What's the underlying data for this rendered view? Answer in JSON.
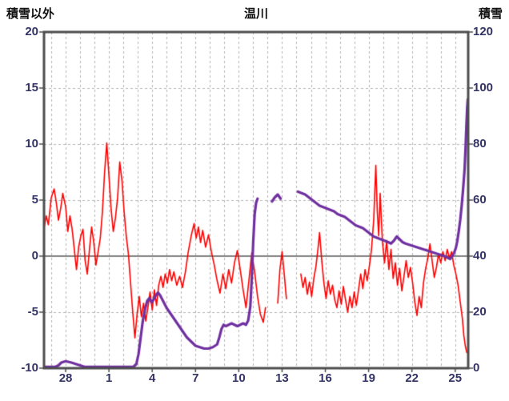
{
  "chart_data": {
    "type": "line",
    "title": "温川",
    "x_axis": {
      "min": 0,
      "max": 29.4,
      "tick_positions": [
        1.5,
        4.5,
        7.5,
        10.5,
        13.5,
        16.5,
        19.5,
        22.5,
        25.5,
        28.5
      ],
      "tick_labels": [
        "28",
        "1",
        "4",
        "7",
        "10",
        "13",
        "16",
        "19",
        "22",
        "25"
      ],
      "day_grid": {
        "start": 0.5,
        "step": 1
      }
    },
    "left_axis": {
      "label": "積雪以外",
      "min": -10,
      "max": 20,
      "ticks": [
        20,
        15,
        10,
        5,
        0,
        -5,
        -10
      ]
    },
    "right_axis": {
      "label": "積雪",
      "min": 0,
      "max": 120,
      "ticks": [
        120,
        100,
        80,
        60,
        40,
        20,
        0
      ]
    },
    "colors": {
      "background": "#ffffff",
      "grid": "#b3b3b3",
      "zero_line": "#808080",
      "frame": "#4d4d4d",
      "tick_text": "#333366",
      "title_text": "#111111"
    },
    "series": [
      {
        "name": "積雪以外",
        "axis": "left",
        "color": "#ff0000",
        "width": 1.6,
        "points": [
          [
            0,
            2.5
          ],
          [
            0.15,
            3.6
          ],
          [
            0.3,
            2.8
          ],
          [
            0.5,
            5.2
          ],
          [
            0.7,
            6.0
          ],
          [
            0.85,
            4.8
          ],
          [
            1.0,
            3.2
          ],
          [
            1.15,
            4.2
          ],
          [
            1.3,
            5.6
          ],
          [
            1.5,
            4.4
          ],
          [
            1.65,
            2.2
          ],
          [
            1.8,
            3.6
          ],
          [
            1.95,
            2.4
          ],
          [
            2.1,
            0.6
          ],
          [
            2.25,
            -1.2
          ],
          [
            2.4,
            0.8
          ],
          [
            2.55,
            1.8
          ],
          [
            2.7,
            2.4
          ],
          [
            2.85,
            -0.4
          ],
          [
            3.0,
            -1.6
          ],
          [
            3.15,
            0.6
          ],
          [
            3.3,
            2.6
          ],
          [
            3.45,
            1.2
          ],
          [
            3.6,
            -0.8
          ],
          [
            3.75,
            0.4
          ],
          [
            3.9,
            1.6
          ],
          [
            4.05,
            4.0
          ],
          [
            4.2,
            7.5
          ],
          [
            4.35,
            10.1
          ],
          [
            4.5,
            7.2
          ],
          [
            4.65,
            4.2
          ],
          [
            4.8,
            2.2
          ],
          [
            4.95,
            3.4
          ],
          [
            5.1,
            5.2
          ],
          [
            5.25,
            8.4
          ],
          [
            5.4,
            6.8
          ],
          [
            5.55,
            4.0
          ],
          [
            5.7,
            1.8
          ],
          [
            5.85,
            0.2
          ],
          [
            6.0,
            -2.4
          ],
          [
            6.15,
            -5.0
          ],
          [
            6.3,
            -7.3
          ],
          [
            6.45,
            -5.2
          ],
          [
            6.6,
            -3.6
          ],
          [
            6.75,
            -5.4
          ],
          [
            6.9,
            -4.2
          ],
          [
            7.05,
            -5.8
          ],
          [
            7.2,
            -4.6
          ],
          [
            7.35,
            -3.2
          ],
          [
            7.5,
            -4.8
          ],
          [
            7.65,
            -3.0
          ],
          [
            7.8,
            -4.4
          ],
          [
            7.95,
            -2.6
          ],
          [
            8.1,
            -1.8
          ],
          [
            8.25,
            -2.8
          ],
          [
            8.4,
            -1.6
          ],
          [
            8.55,
            -2.4
          ],
          [
            8.7,
            -1.2
          ],
          [
            8.85,
            -2.2
          ],
          [
            9.0,
            -1.4
          ],
          [
            9.2,
            -2.6
          ],
          [
            9.4,
            -1.8
          ],
          [
            9.6,
            -2.8
          ],
          [
            9.8,
            -1.4
          ],
          [
            10.0,
            0.4
          ],
          [
            10.2,
            1.8
          ],
          [
            10.4,
            2.9
          ],
          [
            10.55,
            1.6
          ],
          [
            10.7,
            2.6
          ],
          [
            10.85,
            1.2
          ],
          [
            11.0,
            2.3
          ],
          [
            11.2,
            0.8
          ],
          [
            11.4,
            1.9
          ],
          [
            11.6,
            0.4
          ],
          [
            11.8,
            -0.8
          ],
          [
            12.0,
            -2.2
          ],
          [
            12.2,
            -3.3
          ],
          [
            12.4,
            -1.6
          ],
          [
            12.6,
            -2.9
          ],
          [
            12.8,
            -1.2
          ],
          [
            13.0,
            -2.4
          ],
          [
            13.2,
            -0.6
          ],
          [
            13.4,
            0.5
          ],
          [
            13.6,
            -1.2
          ],
          [
            13.8,
            -3.0
          ],
          [
            14.0,
            -4.6
          ],
          [
            14.2,
            -2.2
          ],
          [
            14.4,
            0.3
          ],
          [
            14.6,
            -1.4
          ],
          [
            14.8,
            -3.6
          ],
          [
            15.0,
            -5.2
          ],
          [
            15.2,
            -5.9
          ],
          [
            15.35,
            -4.6
          ],
          null,
          [
            16.2,
            -4.2
          ],
          [
            16.35,
            -1.2
          ],
          [
            16.5,
            0.4
          ],
          [
            16.65,
            -1.6
          ],
          [
            16.8,
            -3.8
          ],
          null,
          [
            17.8,
            -1.6
          ],
          [
            17.95,
            -2.8
          ],
          [
            18.1,
            -1.9
          ],
          [
            18.25,
            -3.4
          ],
          [
            18.4,
            -2.3
          ],
          [
            18.55,
            -3.6
          ],
          [
            18.7,
            -2.0
          ],
          [
            18.85,
            -0.9
          ],
          [
            19.0,
            0.8
          ],
          [
            19.1,
            2.1
          ],
          [
            19.25,
            -0.4
          ],
          [
            19.4,
            -2.4
          ],
          [
            19.55,
            -3.8
          ],
          [
            19.7,
            -2.2
          ],
          [
            19.85,
            -3.4
          ],
          [
            20.0,
            -2.6
          ],
          [
            20.15,
            -3.9
          ],
          [
            20.3,
            -4.6
          ],
          [
            20.45,
            -3.1
          ],
          [
            20.6,
            -4.3
          ],
          [
            20.75,
            -2.7
          ],
          [
            20.9,
            -3.9
          ],
          [
            21.05,
            -5.0
          ],
          [
            21.2,
            -3.6
          ],
          [
            21.35,
            -4.6
          ],
          [
            21.5,
            -3.2
          ],
          [
            21.65,
            -4.4
          ],
          [
            21.8,
            -3.0
          ],
          [
            21.95,
            -1.6
          ],
          [
            22.1,
            -2.9
          ],
          [
            22.25,
            -1.2
          ],
          [
            22.4,
            -2.2
          ],
          [
            22.55,
            -0.9
          ],
          [
            22.7,
            0.6
          ],
          [
            22.85,
            3.2
          ],
          [
            23.0,
            8.1
          ],
          [
            23.1,
            4.0
          ],
          [
            23.2,
            1.8
          ],
          [
            23.3,
            5.6
          ],
          [
            23.45,
            1.4
          ],
          [
            23.6,
            -0.6
          ],
          [
            23.75,
            1.4
          ],
          [
            23.9,
            -1.2
          ],
          [
            24.05,
            0.6
          ],
          [
            24.2,
            -2.0
          ],
          [
            24.35,
            -0.6
          ],
          [
            24.5,
            -2.6
          ],
          [
            24.65,
            -1.1
          ],
          [
            24.8,
            -3.1
          ],
          [
            24.95,
            -1.8
          ],
          [
            25.1,
            -0.4
          ],
          [
            25.25,
            -1.9
          ],
          [
            25.4,
            -1.0
          ],
          [
            25.55,
            -2.4
          ],
          [
            25.7,
            -4.1
          ],
          [
            25.85,
            -5.3
          ],
          [
            26.0,
            -3.6
          ],
          [
            26.15,
            -4.6
          ],
          [
            26.3,
            -2.4
          ],
          [
            26.45,
            -1.1
          ],
          [
            26.6,
            -0.2
          ],
          [
            26.75,
            1.1
          ],
          [
            26.9,
            -0.4
          ],
          [
            27.05,
            -1.9
          ],
          [
            27.2,
            -1.0
          ],
          [
            27.35,
            0.2
          ],
          [
            27.5,
            -0.6
          ],
          [
            27.65,
            0.4
          ],
          [
            27.8,
            -0.4
          ],
          [
            27.95,
            0.6
          ],
          [
            28.1,
            -0.2
          ],
          [
            28.25,
            0.4
          ],
          [
            28.4,
            -0.8
          ],
          [
            28.55,
            -1.6
          ],
          [
            28.7,
            -2.6
          ],
          [
            28.85,
            -4.1
          ],
          [
            29.0,
            -5.6
          ],
          [
            29.1,
            -7.1
          ],
          [
            29.2,
            -8.0
          ],
          [
            29.3,
            -8.6
          ]
        ]
      },
      {
        "name": "積雪",
        "axis": "right",
        "color": "#7030a0",
        "width": 3.2,
        "points": [
          [
            0,
            0.5
          ],
          [
            0.8,
            0.5
          ],
          [
            1.0,
            1.0
          ],
          [
            1.2,
            2.0
          ],
          [
            1.5,
            2.5
          ],
          [
            1.9,
            2.0
          ],
          [
            2.2,
            1.5
          ],
          [
            2.5,
            1.0
          ],
          [
            2.8,
            0.5
          ],
          [
            3.5,
            0.5
          ],
          [
            4.5,
            0.5
          ],
          [
            5.5,
            0.5
          ],
          [
            6.2,
            0.5
          ],
          [
            6.4,
            1.5
          ],
          [
            6.55,
            5.0
          ],
          [
            6.7,
            11.0
          ],
          [
            6.85,
            17.0
          ],
          [
            7.0,
            21.0
          ],
          [
            7.15,
            24.0
          ],
          [
            7.3,
            25.0
          ],
          [
            7.45,
            23.5
          ],
          [
            7.6,
            24.5
          ],
          [
            7.75,
            26.0
          ],
          [
            7.9,
            27.0
          ],
          [
            8.05,
            26.0
          ],
          [
            8.2,
            24.5
          ],
          [
            8.35,
            23.0
          ],
          [
            8.5,
            21.5
          ],
          [
            8.7,
            20.0
          ],
          [
            8.9,
            18.5
          ],
          [
            9.1,
            17.0
          ],
          [
            9.3,
            15.5
          ],
          [
            9.5,
            14.0
          ],
          [
            9.7,
            12.5
          ],
          [
            9.9,
            11.0
          ],
          [
            10.1,
            10.0
          ],
          [
            10.3,
            9.0
          ],
          [
            10.5,
            8.0
          ],
          [
            10.8,
            7.5
          ],
          [
            11.1,
            7.0
          ],
          [
            11.4,
            7.0
          ],
          [
            11.7,
            7.5
          ],
          [
            12.0,
            8.5
          ],
          [
            12.15,
            11.0
          ],
          [
            12.3,
            14.0
          ],
          [
            12.45,
            15.5
          ],
          [
            12.6,
            15.0
          ],
          [
            12.8,
            15.5
          ],
          [
            13.0,
            16.0
          ],
          [
            13.2,
            15.5
          ],
          [
            13.4,
            15.0
          ],
          [
            13.6,
            15.5
          ],
          [
            13.8,
            16.0
          ],
          [
            14.0,
            15.5
          ],
          [
            14.15,
            17.0
          ],
          [
            14.3,
            22.0
          ],
          [
            14.4,
            32.0
          ],
          [
            14.5,
            45.0
          ],
          [
            14.6,
            55.0
          ],
          [
            14.7,
            59.0
          ],
          [
            14.8,
            60.5
          ],
          null,
          [
            15.8,
            59.5
          ],
          [
            16.0,
            61.0
          ],
          [
            16.2,
            62.0
          ],
          [
            16.4,
            60.5
          ],
          null,
          [
            17.6,
            63.0
          ],
          [
            17.85,
            62.5
          ],
          [
            18.1,
            62.0
          ],
          [
            18.35,
            61.0
          ],
          [
            18.6,
            60.0
          ],
          [
            18.85,
            59.0
          ],
          [
            19.1,
            58.0
          ],
          [
            19.35,
            57.5
          ],
          [
            19.6,
            57.0
          ],
          [
            19.85,
            56.5
          ],
          [
            20.1,
            56.0
          ],
          [
            20.35,
            55.0
          ],
          [
            20.6,
            54.5
          ],
          [
            20.85,
            54.0
          ],
          [
            21.1,
            53.0
          ],
          [
            21.35,
            52.0
          ],
          [
            21.6,
            51.0
          ],
          [
            21.85,
            50.5
          ],
          [
            22.1,
            50.0
          ],
          [
            22.35,
            49.0
          ],
          [
            22.6,
            48.0
          ],
          [
            22.85,
            47.0
          ],
          [
            23.1,
            46.5
          ],
          [
            23.35,
            46.0
          ],
          [
            23.6,
            45.5
          ],
          [
            23.85,
            45.0
          ],
          [
            24.05,
            44.5
          ],
          [
            24.25,
            45.5
          ],
          [
            24.45,
            47.0
          ],
          [
            24.65,
            46.0
          ],
          [
            24.85,
            45.0
          ],
          [
            25.05,
            44.5
          ],
          [
            25.35,
            44.0
          ],
          [
            25.65,
            43.5
          ],
          [
            25.95,
            43.0
          ],
          [
            26.25,
            42.5
          ],
          [
            26.55,
            42.0
          ],
          [
            26.85,
            41.5
          ],
          [
            27.15,
            41.0
          ],
          [
            27.45,
            40.5
          ],
          [
            27.75,
            40.0
          ],
          [
            27.95,
            39.5
          ],
          [
            28.15,
            39.0
          ],
          [
            28.3,
            40.0
          ],
          [
            28.45,
            41.5
          ],
          [
            28.55,
            43.0
          ],
          [
            28.65,
            45.5
          ],
          [
            28.75,
            49.0
          ],
          [
            28.85,
            53.0
          ],
          [
            28.95,
            58.0
          ],
          [
            29.05,
            64.0
          ],
          [
            29.15,
            71.0
          ],
          [
            29.22,
            79.0
          ],
          [
            29.28,
            87.0
          ],
          [
            29.33,
            93.0
          ],
          [
            29.37,
            96.0
          ]
        ]
      }
    ]
  }
}
